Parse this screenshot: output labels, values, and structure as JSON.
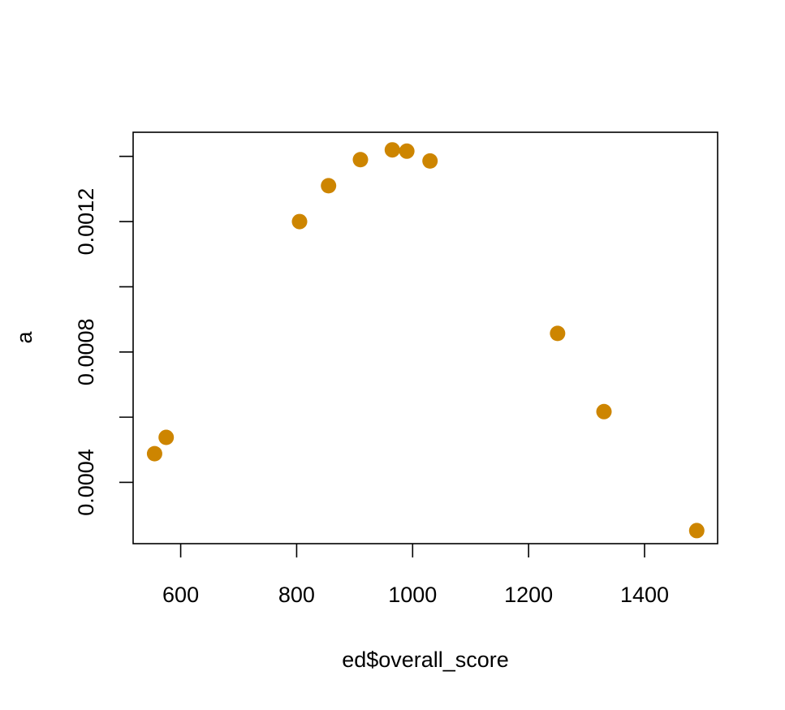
{
  "chart_data": {
    "type": "scatter",
    "xlabel": "ed$overall_score",
    "ylabel": "a",
    "xlim": [
      518,
      1526
    ],
    "ylim": [
      0.000212,
      0.001474
    ],
    "x_ticks": [
      600,
      800,
      1000,
      1200,
      1400
    ],
    "x_tick_labels": [
      "600",
      "800",
      "1000",
      "1200",
      "1400"
    ],
    "y_ticks": [
      0.0004,
      0.0006,
      0.0008,
      0.001,
      0.0012,
      0.0014
    ],
    "y_tick_labels": [
      "0.0004",
      "",
      "0.0008",
      "",
      "0.0012",
      ""
    ],
    "grid": false,
    "point_color": "#cd8500",
    "points": [
      {
        "x": 555,
        "y": 0.000488
      },
      {
        "x": 575,
        "y": 0.000538
      },
      {
        "x": 805,
        "y": 0.0012
      },
      {
        "x": 855,
        "y": 0.00131
      },
      {
        "x": 910,
        "y": 0.00139
      },
      {
        "x": 965,
        "y": 0.00142
      },
      {
        "x": 990,
        "y": 0.001416
      },
      {
        "x": 1030,
        "y": 0.001386
      },
      {
        "x": 1250,
        "y": 0.000857
      },
      {
        "x": 1330,
        "y": 0.000617
      },
      {
        "x": 1490,
        "y": 0.000252
      }
    ]
  }
}
